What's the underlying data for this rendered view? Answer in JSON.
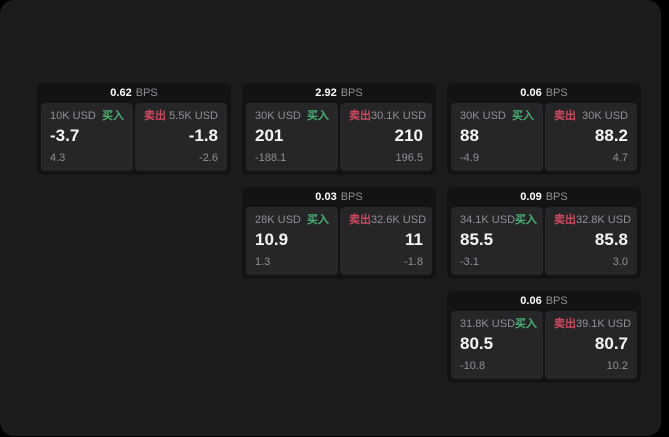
{
  "theme": {
    "background": "#000000",
    "panel": "#1c1c1e",
    "card": "#131315",
    "tile": "#262629",
    "text_primary": "#f5f5f5",
    "text_secondary": "#909095",
    "buy_color": "#4caf72",
    "sell_color": "#cd4a5e"
  },
  "labels": {
    "bps": "BPS",
    "buy": "买入",
    "sell": "卖出"
  },
  "cards": [
    {
      "row": 1,
      "col": 1,
      "bps": "0.62",
      "buy": {
        "amount": "10K USD",
        "value": "-3.7",
        "delta": "4.3"
      },
      "sell": {
        "amount": "5.5K USD",
        "value": "-1.8",
        "delta": "-2.6"
      }
    },
    {
      "row": 1,
      "col": 2,
      "bps": "2.92",
      "buy": {
        "amount": "30K USD",
        "value": "201",
        "delta": "-188.1"
      },
      "sell": {
        "amount": "30.1K USD",
        "value": "210",
        "delta": "196.5"
      }
    },
    {
      "row": 1,
      "col": 3,
      "bps": "0.06",
      "buy": {
        "amount": "30K USD",
        "value": "88",
        "delta": "-4.9"
      },
      "sell": {
        "amount": "30K USD",
        "value": "88.2",
        "delta": "4.7"
      }
    },
    {
      "row": 2,
      "col": 2,
      "bps": "0.03",
      "buy": {
        "amount": "28K USD",
        "value": "10.9",
        "delta": "1.3"
      },
      "sell": {
        "amount": "32.6K USD",
        "value": "11",
        "delta": "-1.8"
      }
    },
    {
      "row": 2,
      "col": 3,
      "bps": "0.09",
      "buy": {
        "amount": "34.1K USD",
        "value": "85.5",
        "delta": "-3.1"
      },
      "sell": {
        "amount": "32.8K USD",
        "value": "85.8",
        "delta": "3.0"
      }
    },
    {
      "row": 3,
      "col": 3,
      "bps": "0.06",
      "buy": {
        "amount": "31.8K USD",
        "value": "80.5",
        "delta": "-10.8"
      },
      "sell": {
        "amount": "39.1K USD",
        "value": "80.7",
        "delta": "10.2"
      }
    }
  ]
}
